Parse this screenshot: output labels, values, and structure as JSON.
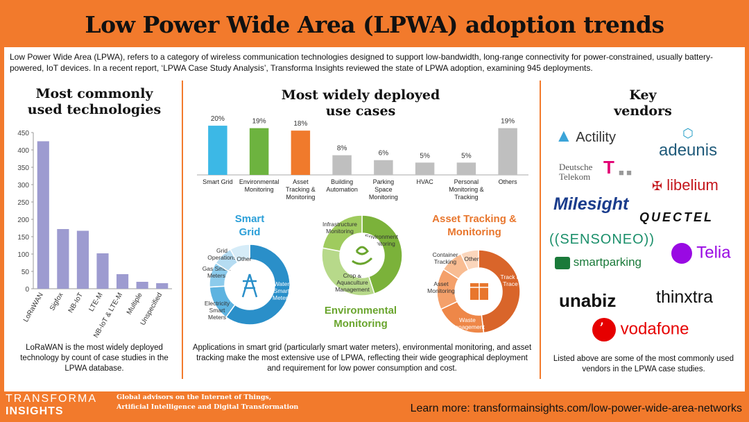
{
  "title": "Low Power Wide Area (LPWA) adoption trends",
  "intro": "Low Power Wide Area (LPWA), refers to a category of wireless communication technologies designed to support low-bandwidth, long-range connectivity for power-constrained, usually battery-powered, IoT devices. In a recent report, ‘LPWA Case Study Analysis’, Transforma Insights reviewed the state of LPWA adoption, examining 945 deployments.",
  "sections": {
    "tech": {
      "title_line1": "Most commonly",
      "title_line2": "used technologies",
      "caption": "LoRaWAN is the most widely deployed technology by count of case studies in the LPWA database."
    },
    "usecases": {
      "title_line1": "Most widely deployed",
      "title_line2": "use cases",
      "caption": "Applications in smart grid (particularly smart water meters), environmental monitoring, and asset tracking make the most extensive use of LPWA, reflecting their wide geographical deployment and requirement for low power consumption and cost."
    },
    "vendors": {
      "title_line1": "Key",
      "title_line2": "vendors",
      "caption": "Listed above are some of the most commonly used vendors in the LPWA case studies.",
      "items": [
        {
          "name": "Actility",
          "color": "#333333"
        },
        {
          "name": "adeunis",
          "color": "#1f5a7a"
        },
        {
          "name": "Deutsche Telekom",
          "color": "#e20074"
        },
        {
          "name": "libelium",
          "color": "#c4161c"
        },
        {
          "name": "Milesight",
          "color": "#1a3c8c"
        },
        {
          "name": "QUECTEL",
          "color": "#111111"
        },
        {
          "name": "((SENSONEO))",
          "color": "#1a8f6a"
        },
        {
          "name": "Telia",
          "color": "#990ae3"
        },
        {
          "name": "smartparking",
          "color": "#1a7a3a"
        },
        {
          "name": "unabiz",
          "color": "#111111"
        },
        {
          "name": "thinxtra",
          "color": "#111111"
        },
        {
          "name": "vodafone",
          "color": "#e60000"
        }
      ]
    }
  },
  "donuts": {
    "smart_grid": {
      "title_line1": "Smart",
      "title_line2": "Grid",
      "title_color": "#2b9fd8",
      "segments": [
        {
          "label": "Water Smart Meters",
          "value": 60,
          "color": "#2a8fc9"
        },
        {
          "label": "Electricity Smart Meters",
          "value": 14,
          "color": "#5db3e0"
        },
        {
          "label": "Gas Smart Meters",
          "value": 10,
          "color": "#8ccbec"
        },
        {
          "label": "Grid Operations",
          "value": 8,
          "color": "#b5dcf2"
        },
        {
          "label": "Other",
          "value": 8,
          "color": "#d6ecf8"
        }
      ]
    },
    "environmental": {
      "title_line1": "Environmental",
      "title_line2": "Monitoring",
      "title_color": "#6aa52e",
      "segments": [
        {
          "label": "Environment Monitoring",
          "value": 45,
          "color": "#7bb23a"
        },
        {
          "label": "Crop & Aquaculture Management",
          "value": 33,
          "color": "#b7d98a"
        },
        {
          "label": "Infrastructure Monitoring",
          "value": 22,
          "color": "#9fcb5e"
        }
      ]
    },
    "asset": {
      "title_line1": "Asset Tracking &",
      "title_line2": "Monitoring",
      "title_color": "#e8762d",
      "segments": [
        {
          "label": "Track & Trace",
          "value": 48,
          "color": "#d9652a"
        },
        {
          "label": "Waste Management",
          "value": 20,
          "color": "#ee8748"
        },
        {
          "label": "Asset Monitoring",
          "value": 16,
          "color": "#f4a06a"
        },
        {
          "label": "Container Tracking",
          "value": 9,
          "color": "#f8bc92"
        },
        {
          "label": "Other",
          "value": 7,
          "color": "#fbd6bc"
        }
      ]
    }
  },
  "footer": {
    "brand_line1": "TRANSFORMA",
    "brand_line2": "INSIGHTS",
    "tagline_line1": "Global advisors on the Internet of Things,",
    "tagline_line2": "Artificial Intelligence and Digital Transformation",
    "learn_more": "Learn more: transformainsights.com/low-power-wide-area-networks"
  },
  "chart_data": [
    {
      "type": "bar",
      "title": "Most commonly used technologies",
      "categories": [
        "LoRaWAN",
        "Sigfox",
        "NB-IoT",
        "LTE-M",
        "NB-IoT & LTE-M",
        "Multiple",
        "Unspecified"
      ],
      "values": [
        425,
        172,
        167,
        102,
        42,
        20,
        16
      ],
      "ylim": [
        0,
        450
      ],
      "yticks": [
        0,
        50,
        100,
        150,
        200,
        250,
        300,
        350,
        400,
        450
      ],
      "color": "#9d9bd0",
      "grid": false
    },
    {
      "type": "bar",
      "title": "Most widely deployed use cases",
      "categories": [
        "Smart Grid",
        "Environmental Monitoring",
        "Asset Tracking & Monitoring",
        "Building Automation",
        "Parking Space Monitoring",
        "HVAC",
        "Personal Monitoring & Tracking",
        "Others"
      ],
      "values": [
        20,
        19,
        18,
        8,
        6,
        5,
        5,
        19
      ],
      "value_labels": [
        "20%",
        "19%",
        "18%",
        "8%",
        "6%",
        "5%",
        "5%",
        "19%"
      ],
      "colors": [
        "#3cb8e6",
        "#6db33f",
        "#f07a2c",
        "#bfbfbf",
        "#bfbfbf",
        "#bfbfbf",
        "#bfbfbf",
        "#bfbfbf"
      ],
      "ylim": [
        0,
        22
      ]
    }
  ]
}
